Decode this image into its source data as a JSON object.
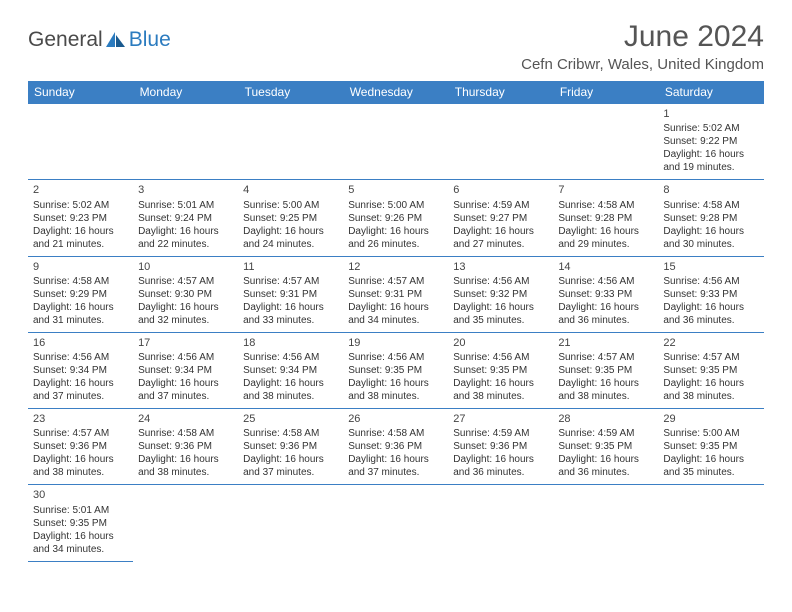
{
  "logo": {
    "text1": "General",
    "text2": "Blue"
  },
  "title": "June 2024",
  "location": "Cefn Cribwr, Wales, United Kingdom",
  "dayHeaders": [
    "Sunday",
    "Monday",
    "Tuesday",
    "Wednesday",
    "Thursday",
    "Friday",
    "Saturday"
  ],
  "colors": {
    "headerBg": "#3b7fc4",
    "headerText": "#ffffff",
    "border": "#3b7fc4",
    "logoBlue": "#2b7bbf",
    "text": "#333333",
    "emptyBg": "#f0f0f0"
  },
  "weeks": [
    [
      null,
      null,
      null,
      null,
      null,
      null,
      {
        "n": "1",
        "sr": "5:02 AM",
        "ss": "9:22 PM",
        "dl": "16 hours and 19 minutes."
      }
    ],
    [
      {
        "n": "2",
        "sr": "5:02 AM",
        "ss": "9:23 PM",
        "dl": "16 hours and 21 minutes."
      },
      {
        "n": "3",
        "sr": "5:01 AM",
        "ss": "9:24 PM",
        "dl": "16 hours and 22 minutes."
      },
      {
        "n": "4",
        "sr": "5:00 AM",
        "ss": "9:25 PM",
        "dl": "16 hours and 24 minutes."
      },
      {
        "n": "5",
        "sr": "5:00 AM",
        "ss": "9:26 PM",
        "dl": "16 hours and 26 minutes."
      },
      {
        "n": "6",
        "sr": "4:59 AM",
        "ss": "9:27 PM",
        "dl": "16 hours and 27 minutes."
      },
      {
        "n": "7",
        "sr": "4:58 AM",
        "ss": "9:28 PM",
        "dl": "16 hours and 29 minutes."
      },
      {
        "n": "8",
        "sr": "4:58 AM",
        "ss": "9:28 PM",
        "dl": "16 hours and 30 minutes."
      }
    ],
    [
      {
        "n": "9",
        "sr": "4:58 AM",
        "ss": "9:29 PM",
        "dl": "16 hours and 31 minutes."
      },
      {
        "n": "10",
        "sr": "4:57 AM",
        "ss": "9:30 PM",
        "dl": "16 hours and 32 minutes."
      },
      {
        "n": "11",
        "sr": "4:57 AM",
        "ss": "9:31 PM",
        "dl": "16 hours and 33 minutes."
      },
      {
        "n": "12",
        "sr": "4:57 AM",
        "ss": "9:31 PM",
        "dl": "16 hours and 34 minutes."
      },
      {
        "n": "13",
        "sr": "4:56 AM",
        "ss": "9:32 PM",
        "dl": "16 hours and 35 minutes."
      },
      {
        "n": "14",
        "sr": "4:56 AM",
        "ss": "9:33 PM",
        "dl": "16 hours and 36 minutes."
      },
      {
        "n": "15",
        "sr": "4:56 AM",
        "ss": "9:33 PM",
        "dl": "16 hours and 36 minutes."
      }
    ],
    [
      {
        "n": "16",
        "sr": "4:56 AM",
        "ss": "9:34 PM",
        "dl": "16 hours and 37 minutes."
      },
      {
        "n": "17",
        "sr": "4:56 AM",
        "ss": "9:34 PM",
        "dl": "16 hours and 37 minutes."
      },
      {
        "n": "18",
        "sr": "4:56 AM",
        "ss": "9:34 PM",
        "dl": "16 hours and 38 minutes."
      },
      {
        "n": "19",
        "sr": "4:56 AM",
        "ss": "9:35 PM",
        "dl": "16 hours and 38 minutes."
      },
      {
        "n": "20",
        "sr": "4:56 AM",
        "ss": "9:35 PM",
        "dl": "16 hours and 38 minutes."
      },
      {
        "n": "21",
        "sr": "4:57 AM",
        "ss": "9:35 PM",
        "dl": "16 hours and 38 minutes."
      },
      {
        "n": "22",
        "sr": "4:57 AM",
        "ss": "9:35 PM",
        "dl": "16 hours and 38 minutes."
      }
    ],
    [
      {
        "n": "23",
        "sr": "4:57 AM",
        "ss": "9:36 PM",
        "dl": "16 hours and 38 minutes."
      },
      {
        "n": "24",
        "sr": "4:58 AM",
        "ss": "9:36 PM",
        "dl": "16 hours and 38 minutes."
      },
      {
        "n": "25",
        "sr": "4:58 AM",
        "ss": "9:36 PM",
        "dl": "16 hours and 37 minutes."
      },
      {
        "n": "26",
        "sr": "4:58 AM",
        "ss": "9:36 PM",
        "dl": "16 hours and 37 minutes."
      },
      {
        "n": "27",
        "sr": "4:59 AM",
        "ss": "9:36 PM",
        "dl": "16 hours and 36 minutes."
      },
      {
        "n": "28",
        "sr": "4:59 AM",
        "ss": "9:35 PM",
        "dl": "16 hours and 36 minutes."
      },
      {
        "n": "29",
        "sr": "5:00 AM",
        "ss": "9:35 PM",
        "dl": "16 hours and 35 minutes."
      }
    ],
    [
      {
        "n": "30",
        "sr": "5:01 AM",
        "ss": "9:35 PM",
        "dl": "16 hours and 34 minutes."
      },
      null,
      null,
      null,
      null,
      null,
      null
    ]
  ],
  "labels": {
    "sunrise": "Sunrise:",
    "sunset": "Sunset:",
    "daylight": "Daylight:"
  }
}
